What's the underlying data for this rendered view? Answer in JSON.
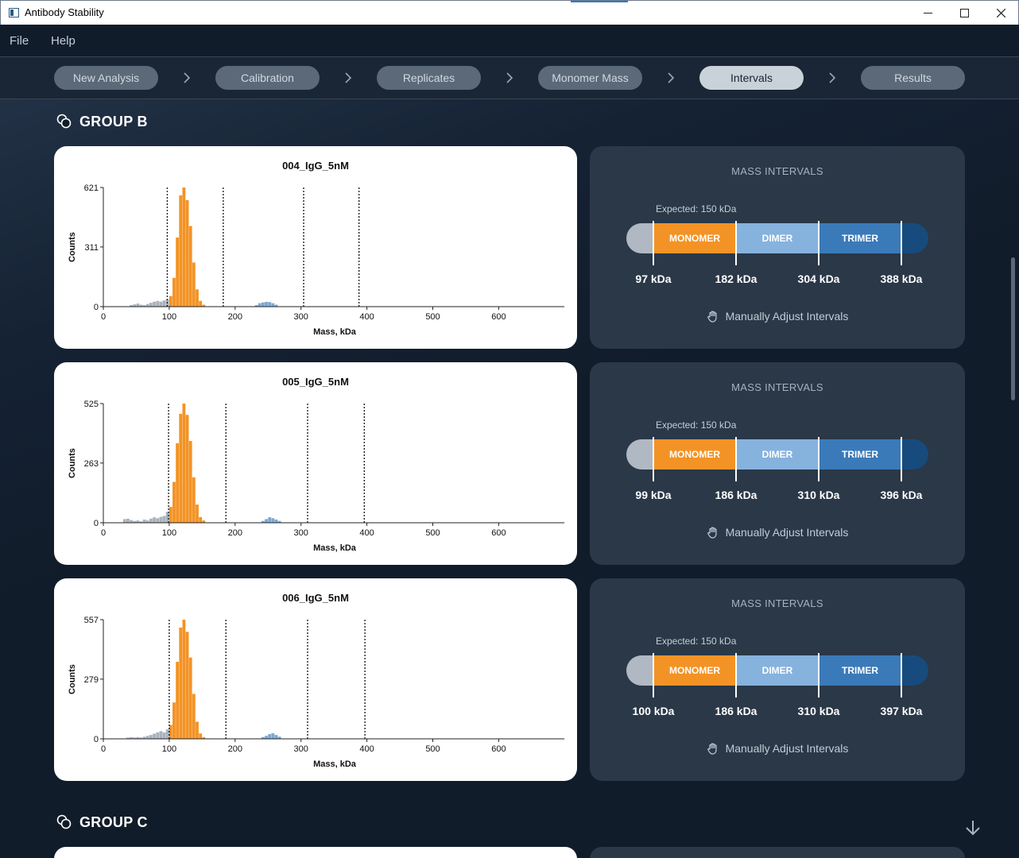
{
  "window": {
    "title": "Antibody Stability"
  },
  "menu": [
    "File",
    "Help"
  ],
  "steps": [
    {
      "label": "New Analysis",
      "active": false
    },
    {
      "label": "Calibration",
      "active": false
    },
    {
      "label": "Replicates",
      "active": false
    },
    {
      "label": "Monomer Mass",
      "active": false
    },
    {
      "label": "Intervals",
      "active": true
    },
    {
      "label": "Results",
      "active": false
    }
  ],
  "groups": [
    {
      "title": "GROUP B"
    },
    {
      "title": "GROUP C"
    }
  ],
  "rows": [
    {
      "chart": {
        "title": "004_IgG_5nM",
        "ymax": 621,
        "ymid": 311
      },
      "intervals": {
        "heading": "MASS INTERVALS",
        "expected": "Expected: 150 kDa",
        "labels": [
          "97 kDa",
          "182 kDa",
          "304 kDa",
          "388 kDa"
        ],
        "segments": [
          "MONOMER",
          "DIMER",
          "TRIMER"
        ],
        "adjust": "Manually Adjust Intervals"
      }
    },
    {
      "chart": {
        "title": "005_IgG_5nM",
        "ymax": 525,
        "ymid": 263
      },
      "intervals": {
        "heading": "MASS INTERVALS",
        "expected": "Expected: 150 kDa",
        "labels": [
          "99 kDa",
          "186 kDa",
          "310 kDa",
          "396 kDa"
        ],
        "segments": [
          "MONOMER",
          "DIMER",
          "TRIMER"
        ],
        "adjust": "Manually Adjust Intervals"
      }
    },
    {
      "chart": {
        "title": "006_IgG_5nM",
        "ymax": 557,
        "ymid": 279
      },
      "intervals": {
        "heading": "MASS INTERVALS",
        "expected": "Expected: 150 kDa",
        "labels": [
          "100 kDa",
          "186 kDa",
          "310 kDa",
          "397 kDa"
        ],
        "segments": [
          "MONOMER",
          "DIMER",
          "TRIMER"
        ],
        "adjust": "Manually Adjust Intervals"
      }
    }
  ],
  "chart_data": [
    {
      "type": "bar",
      "title": "004_IgG_5nM",
      "xlabel": "Mass, kDa",
      "ylabel": "Counts",
      "xlim": [
        0,
        700
      ],
      "ylim": [
        0,
        621
      ],
      "xticks": [
        0,
        100,
        200,
        300,
        400,
        500,
        600
      ],
      "yticks": [
        0,
        311,
        621
      ],
      "interval_lines_kDa": [
        97,
        182,
        304,
        388
      ],
      "bins": [
        {
          "x": 40,
          "y": 8,
          "c": "gray"
        },
        {
          "x": 45,
          "y": 12,
          "c": "gray"
        },
        {
          "x": 50,
          "y": 16,
          "c": "gray"
        },
        {
          "x": 55,
          "y": 10,
          "c": "gray"
        },
        {
          "x": 60,
          "y": 8,
          "c": "gray"
        },
        {
          "x": 65,
          "y": 14,
          "c": "gray"
        },
        {
          "x": 70,
          "y": 20,
          "c": "gray"
        },
        {
          "x": 75,
          "y": 26,
          "c": "gray"
        },
        {
          "x": 80,
          "y": 30,
          "c": "gray"
        },
        {
          "x": 85,
          "y": 26,
          "c": "gray"
        },
        {
          "x": 90,
          "y": 32,
          "c": "gray"
        },
        {
          "x": 95,
          "y": 38,
          "c": "gray"
        },
        {
          "x": 100,
          "y": 55,
          "c": "orange"
        },
        {
          "x": 105,
          "y": 150,
          "c": "orange"
        },
        {
          "x": 110,
          "y": 360,
          "c": "orange"
        },
        {
          "x": 115,
          "y": 580,
          "c": "orange"
        },
        {
          "x": 120,
          "y": 621,
          "c": "orange"
        },
        {
          "x": 125,
          "y": 555,
          "c": "orange"
        },
        {
          "x": 130,
          "y": 420,
          "c": "orange"
        },
        {
          "x": 135,
          "y": 230,
          "c": "orange"
        },
        {
          "x": 140,
          "y": 90,
          "c": "orange"
        },
        {
          "x": 145,
          "y": 30,
          "c": "orange"
        },
        {
          "x": 150,
          "y": 10,
          "c": "orange"
        },
        {
          "x": 230,
          "y": 8,
          "c": "blue"
        },
        {
          "x": 235,
          "y": 18,
          "c": "blue"
        },
        {
          "x": 240,
          "y": 22,
          "c": "blue"
        },
        {
          "x": 245,
          "y": 25,
          "c": "blue"
        },
        {
          "x": 250,
          "y": 24,
          "c": "blue"
        },
        {
          "x": 255,
          "y": 18,
          "c": "blue"
        },
        {
          "x": 260,
          "y": 10,
          "c": "blue"
        }
      ]
    },
    {
      "type": "bar",
      "title": "005_IgG_5nM",
      "xlabel": "Mass, kDa",
      "ylabel": "Counts",
      "xlim": [
        0,
        700
      ],
      "ylim": [
        0,
        525
      ],
      "xticks": [
        0,
        100,
        200,
        300,
        400,
        500,
        600
      ],
      "yticks": [
        0,
        263,
        525
      ],
      "interval_lines_kDa": [
        99,
        186,
        310,
        396
      ],
      "bins": [
        {
          "x": 30,
          "y": 16,
          "c": "gray"
        },
        {
          "x": 35,
          "y": 18,
          "c": "gray"
        },
        {
          "x": 40,
          "y": 12,
          "c": "gray"
        },
        {
          "x": 45,
          "y": 8,
          "c": "gray"
        },
        {
          "x": 50,
          "y": 10,
          "c": "gray"
        },
        {
          "x": 55,
          "y": 6,
          "c": "gray"
        },
        {
          "x": 60,
          "y": 14,
          "c": "gray"
        },
        {
          "x": 65,
          "y": 10,
          "c": "gray"
        },
        {
          "x": 70,
          "y": 18,
          "c": "gray"
        },
        {
          "x": 75,
          "y": 24,
          "c": "gray"
        },
        {
          "x": 80,
          "y": 20,
          "c": "gray"
        },
        {
          "x": 85,
          "y": 26,
          "c": "gray"
        },
        {
          "x": 90,
          "y": 30,
          "c": "gray"
        },
        {
          "x": 95,
          "y": 48,
          "c": "gray"
        },
        {
          "x": 100,
          "y": 70,
          "c": "orange"
        },
        {
          "x": 105,
          "y": 180,
          "c": "orange"
        },
        {
          "x": 110,
          "y": 350,
          "c": "orange"
        },
        {
          "x": 115,
          "y": 480,
          "c": "orange"
        },
        {
          "x": 120,
          "y": 525,
          "c": "orange"
        },
        {
          "x": 125,
          "y": 475,
          "c": "orange"
        },
        {
          "x": 130,
          "y": 360,
          "c": "orange"
        },
        {
          "x": 135,
          "y": 200,
          "c": "orange"
        },
        {
          "x": 140,
          "y": 80,
          "c": "orange"
        },
        {
          "x": 145,
          "y": 25,
          "c": "orange"
        },
        {
          "x": 150,
          "y": 10,
          "c": "orange"
        },
        {
          "x": 240,
          "y": 8,
          "c": "blue"
        },
        {
          "x": 245,
          "y": 16,
          "c": "blue"
        },
        {
          "x": 250,
          "y": 24,
          "c": "blue"
        },
        {
          "x": 255,
          "y": 20,
          "c": "blue"
        },
        {
          "x": 260,
          "y": 14,
          "c": "blue"
        },
        {
          "x": 265,
          "y": 8,
          "c": "blue"
        }
      ]
    },
    {
      "type": "bar",
      "title": "006_IgG_5nM",
      "xlabel": "Mass, kDa",
      "ylabel": "Counts",
      "xlim": [
        0,
        700
      ],
      "ylim": [
        0,
        557
      ],
      "xticks": [
        0,
        100,
        200,
        300,
        400,
        500,
        600
      ],
      "yticks": [
        0,
        279,
        557
      ],
      "interval_lines_kDa": [
        100,
        186,
        310,
        397
      ],
      "bins": [
        {
          "x": 35,
          "y": 6,
          "c": "gray"
        },
        {
          "x": 40,
          "y": 8,
          "c": "gray"
        },
        {
          "x": 45,
          "y": 6,
          "c": "gray"
        },
        {
          "x": 50,
          "y": 8,
          "c": "gray"
        },
        {
          "x": 55,
          "y": 6,
          "c": "gray"
        },
        {
          "x": 60,
          "y": 10,
          "c": "gray"
        },
        {
          "x": 65,
          "y": 14,
          "c": "gray"
        },
        {
          "x": 70,
          "y": 18,
          "c": "gray"
        },
        {
          "x": 75,
          "y": 24,
          "c": "gray"
        },
        {
          "x": 80,
          "y": 30,
          "c": "gray"
        },
        {
          "x": 85,
          "y": 36,
          "c": "gray"
        },
        {
          "x": 90,
          "y": 30,
          "c": "gray"
        },
        {
          "x": 95,
          "y": 44,
          "c": "gray"
        },
        {
          "x": 100,
          "y": 65,
          "c": "orange"
        },
        {
          "x": 105,
          "y": 170,
          "c": "orange"
        },
        {
          "x": 110,
          "y": 360,
          "c": "orange"
        },
        {
          "x": 115,
          "y": 520,
          "c": "orange"
        },
        {
          "x": 120,
          "y": 557,
          "c": "orange"
        },
        {
          "x": 125,
          "y": 500,
          "c": "orange"
        },
        {
          "x": 130,
          "y": 380,
          "c": "orange"
        },
        {
          "x": 135,
          "y": 210,
          "c": "orange"
        },
        {
          "x": 140,
          "y": 80,
          "c": "orange"
        },
        {
          "x": 145,
          "y": 25,
          "c": "orange"
        },
        {
          "x": 150,
          "y": 8,
          "c": "orange"
        },
        {
          "x": 240,
          "y": 8,
          "c": "blue"
        },
        {
          "x": 245,
          "y": 14,
          "c": "blue"
        },
        {
          "x": 250,
          "y": 22,
          "c": "blue"
        },
        {
          "x": 255,
          "y": 26,
          "c": "blue"
        },
        {
          "x": 260,
          "y": 18,
          "c": "blue"
        },
        {
          "x": 265,
          "y": 10,
          "c": "blue"
        }
      ]
    }
  ],
  "colors": {
    "background": "#111c2a",
    "card_bg": "#2a3848",
    "monomer": "#f39325",
    "dimer": "#86b2de",
    "trimer": "#3a7ab9",
    "tetramer": "#184b7d",
    "below": "#b0b9c3",
    "hist_gray": "#a9b3be",
    "hist_blue": "#7ba8d4"
  }
}
